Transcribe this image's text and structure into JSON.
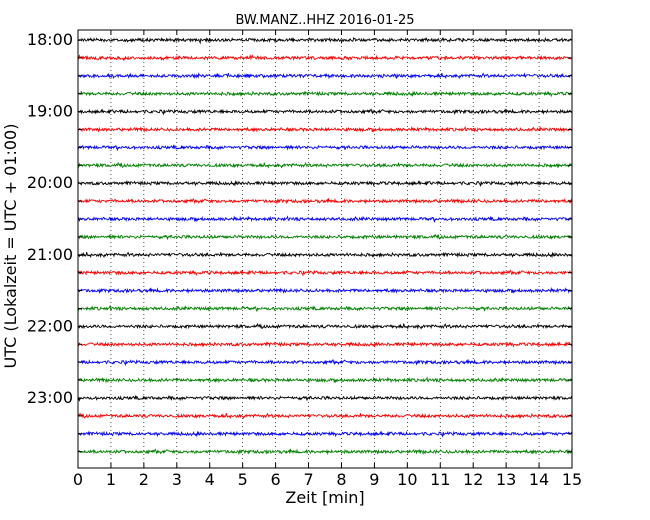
{
  "chart_data": {
    "type": "line",
    "title": "BW.MANZ..HHZ 2016-01-25",
    "xlabel": "Zeit  [min]",
    "ylabel": "UTC (Lokalzeit = UTC + 01:00)",
    "xlim": [
      0,
      15
    ],
    "x_ticks": [
      0,
      1,
      2,
      3,
      4,
      5,
      6,
      7,
      8,
      9,
      10,
      11,
      12,
      13,
      14,
      15
    ],
    "x_tick_labels": [
      "0",
      "1",
      "2",
      "3",
      "4",
      "5",
      "6",
      "7",
      "8",
      "9",
      "10",
      "11",
      "12",
      "13",
      "14",
      "15"
    ],
    "y_tick_labels": [
      "18:00",
      "19:00",
      "20:00",
      "21:00",
      "22:00",
      "23:00"
    ],
    "grid": "vertical dotted lines at each minute",
    "trace_colors": [
      "#000000",
      "#ff0000",
      "#0000ff",
      "#008000"
    ],
    "traces": [
      {
        "start": "18:00"
      },
      {
        "start": "18:15"
      },
      {
        "start": "18:30"
      },
      {
        "start": "18:45"
      },
      {
        "start": "19:00"
      },
      {
        "start": "19:15"
      },
      {
        "start": "19:30"
      },
      {
        "start": "19:45"
      },
      {
        "start": "20:00"
      },
      {
        "start": "20:15"
      },
      {
        "start": "20:30"
      },
      {
        "start": "20:45"
      },
      {
        "start": "21:00"
      },
      {
        "start": "21:15"
      },
      {
        "start": "21:30"
      },
      {
        "start": "21:45"
      },
      {
        "start": "22:00"
      },
      {
        "start": "22:15"
      },
      {
        "start": "22:30"
      },
      {
        "start": "22:45"
      },
      {
        "start": "23:00"
      },
      {
        "start": "23:15"
      },
      {
        "start": "23:30"
      },
      {
        "start": "23:45"
      }
    ]
  }
}
